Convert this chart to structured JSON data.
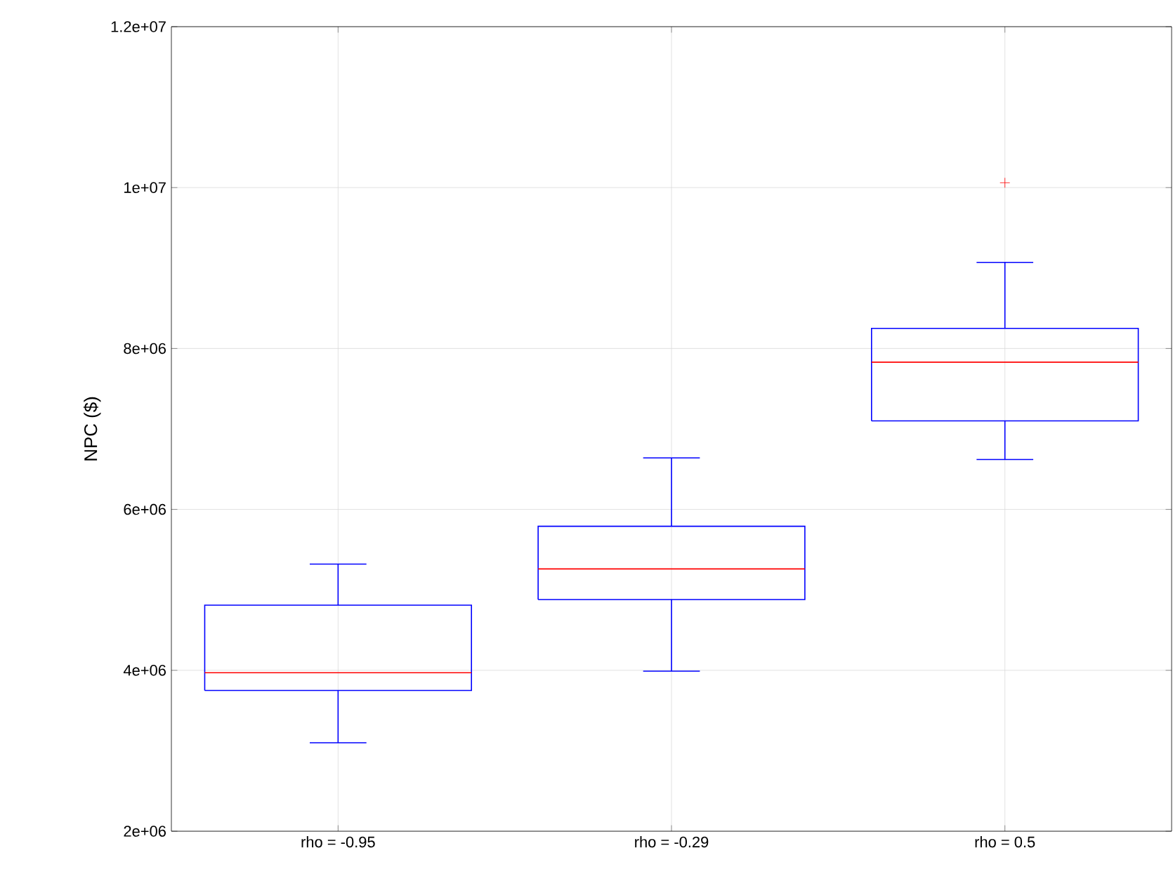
{
  "chart_data": {
    "type": "box",
    "ylabel": "NPC ($)",
    "categories": [
      "rho = -0.95",
      "rho = -0.29",
      "rho = 0.5"
    ],
    "series": [
      {
        "color": "#0000ff",
        "boxes": [
          {
            "low": 3100000,
            "q1": 3750000,
            "median": 3970000,
            "q3": 4810000,
            "high": 5320000
          },
          {
            "low": 3990000,
            "q1": 4880000,
            "median": 5260000,
            "q3": 5790000,
            "high": 6640000
          },
          {
            "low": 6620000,
            "q1": 7100000,
            "median": 7830000,
            "q3": 8250000,
            "high": 9070000,
            "outliers": [
              10060000
            ]
          }
        ]
      }
    ],
    "ylim": [
      2000000,
      12000000
    ],
    "yticks": [
      {
        "value": 2000000,
        "label": "2e+06"
      },
      {
        "value": 4000000,
        "label": "4e+06"
      },
      {
        "value": 6000000,
        "label": "6e+06"
      },
      {
        "value": 8000000,
        "label": "8e+06"
      },
      {
        "value": 10000000,
        "label": "1e+07"
      },
      {
        "value": 12000000,
        "label": "1.2e+07"
      }
    ],
    "grid": true
  }
}
